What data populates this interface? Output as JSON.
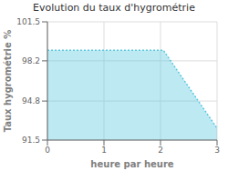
{
  "chart_data": {
    "type": "area",
    "title": "Evolution du taux d'hygrométrie",
    "xlabel": "heure par heure",
    "ylabel": "Taux hygrométrie %",
    "x": [
      0,
      0.05,
      2.0,
      2.05,
      3.0
    ],
    "values": [
      99.1,
      99.1,
      99.1,
      99.1,
      92.5
    ],
    "color": "#5bc8e0",
    "line_style": "dotted",
    "xlim": [
      0,
      3
    ],
    "ylim": [
      91.5,
      101.5
    ],
    "xticks": [
      0,
      1,
      2,
      3
    ],
    "yticks": [
      91.5,
      94.8,
      98.2,
      101.5
    ],
    "grid": true
  }
}
